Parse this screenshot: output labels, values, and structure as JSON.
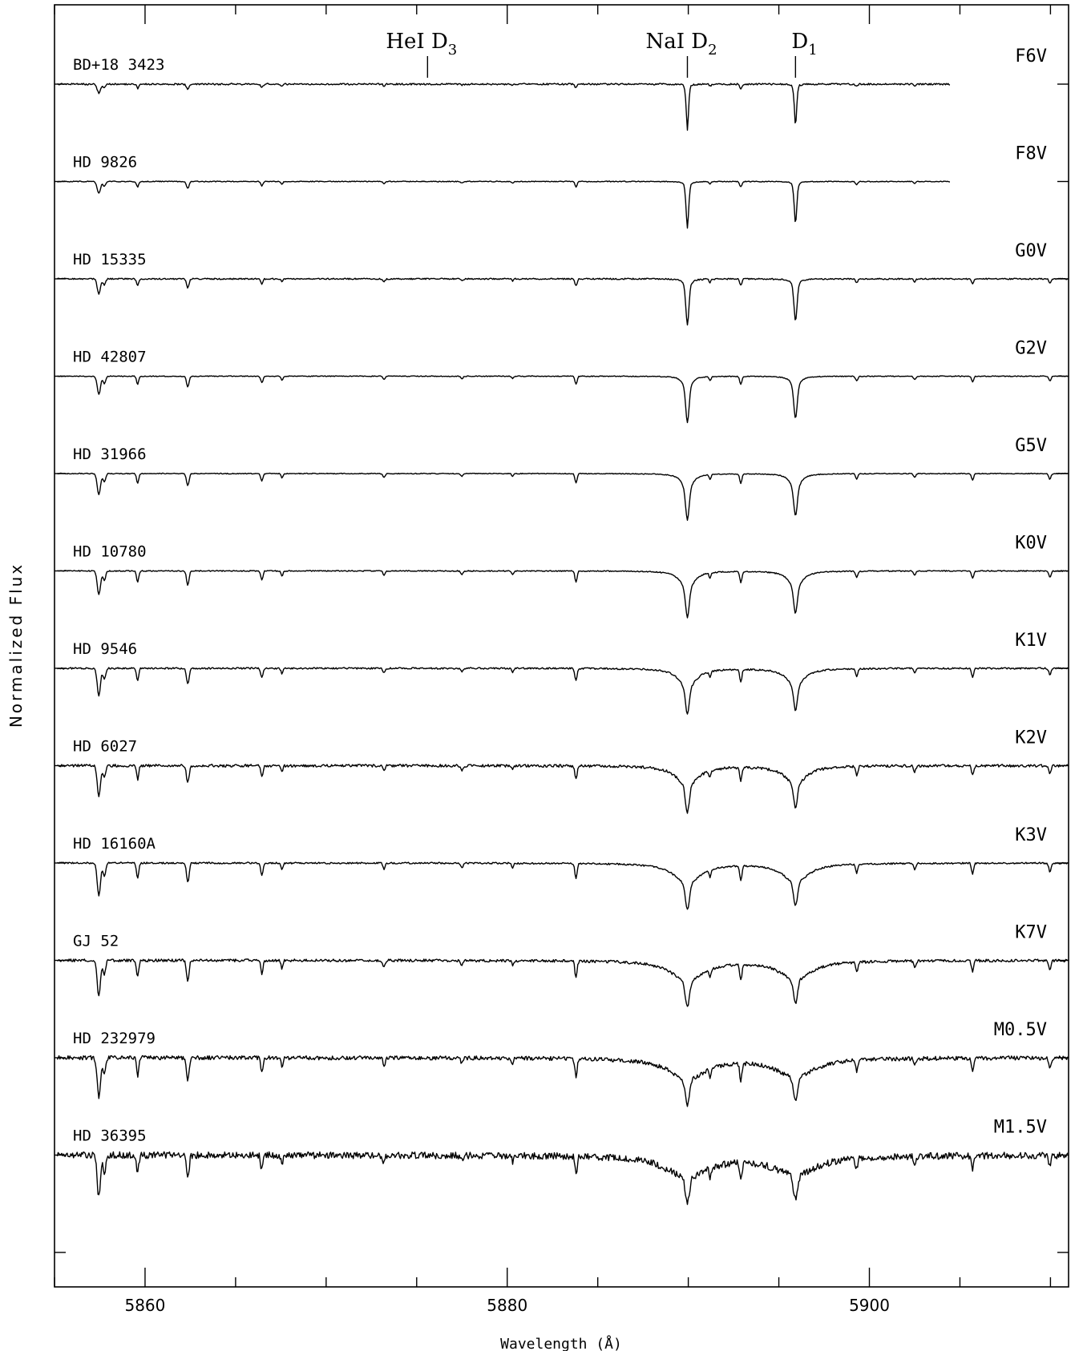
{
  "chart_data": {
    "type": "line",
    "xlabel": "Wavelength (Å)",
    "ylabel": "Normalized Flux",
    "xlim": [
      5855,
      5911
    ],
    "x_ticks": [
      5860,
      5880,
      5900
    ],
    "grid": false,
    "line_markers": [
      {
        "name": "HeI",
        "sub": "D",
        "subscript": "3",
        "wavelength": 5875.6
      },
      {
        "name": "NaI",
        "sub": "D",
        "subscript": "2",
        "wavelength": 5889.95
      },
      {
        "name": "",
        "sub": "D",
        "subscript": "1",
        "wavelength": 5895.92
      }
    ],
    "series": [
      {
        "star": "BD+18 3423",
        "sptype": "F6V",
        "continuum": 1.0,
        "x_end": 5904.5,
        "noise": 0.012
      },
      {
        "star": "HD 9826",
        "sptype": "F8V",
        "continuum": 1.0,
        "x_end": 5904.5,
        "noise": 0.006
      },
      {
        "star": "HD 15335",
        "sptype": "G0V",
        "continuum": 1.0,
        "x_end": 5911,
        "noise": 0.01
      },
      {
        "star": "HD 42807",
        "sptype": "G2V",
        "continuum": 1.0,
        "x_end": 5911,
        "noise": 0.006
      },
      {
        "star": "HD 31966",
        "sptype": "G5V",
        "continuum": 1.0,
        "x_end": 5911,
        "noise": 0.006
      },
      {
        "star": "HD 10780",
        "sptype": "K0V",
        "continuum": 1.0,
        "x_end": 5911,
        "noise": 0.008
      },
      {
        "star": "HD 9546",
        "sptype": "K1V",
        "continuum": 1.0,
        "x_end": 5911,
        "noise": 0.012
      },
      {
        "star": "HD 6027",
        "sptype": "K2V",
        "continuum": 1.0,
        "x_end": 5911,
        "noise": 0.02
      },
      {
        "star": "HD 16160A",
        "sptype": "K3V",
        "continuum": 1.0,
        "x_end": 5911,
        "noise": 0.012
      },
      {
        "star": "GJ 52",
        "sptype": "K7V",
        "continuum": 1.0,
        "x_end": 5911,
        "noise": 0.02
      },
      {
        "star": "HD 232979",
        "sptype": "M0.5V",
        "continuum": 1.0,
        "x_end": 5911,
        "noise": 0.03
      },
      {
        "star": "HD 36395",
        "sptype": "M1.5V",
        "continuum": 1.0,
        "x_end": 5911,
        "noise": 0.05
      }
    ]
  }
}
